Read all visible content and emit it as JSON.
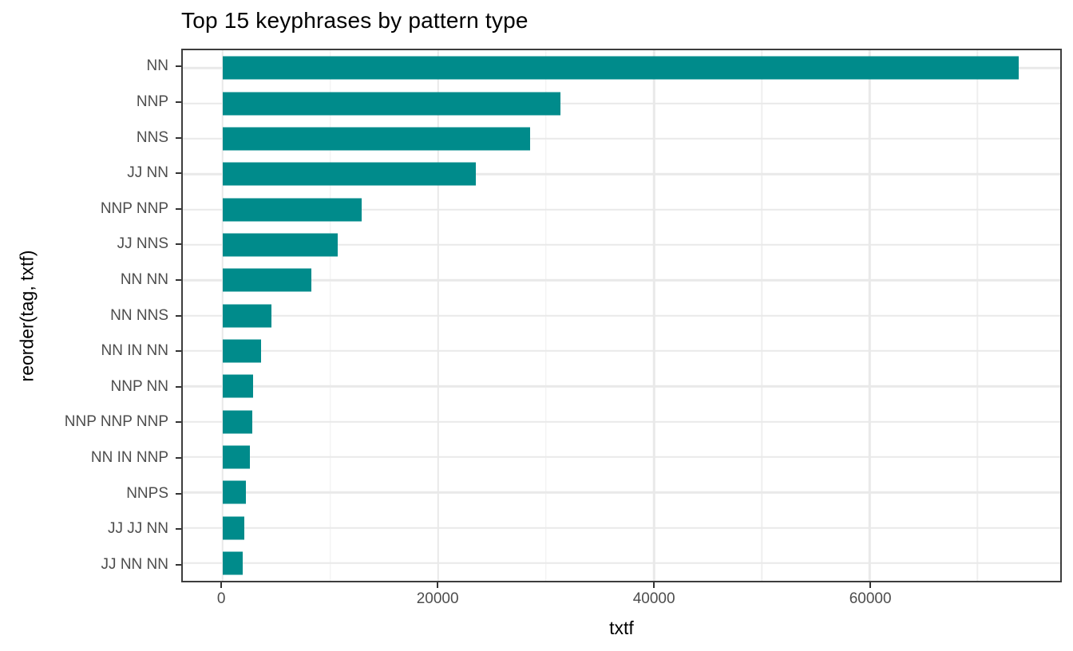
{
  "chart_data": {
    "type": "bar",
    "orientation": "horizontal",
    "title": "Top 15 keyphrases by pattern type",
    "xlabel": "txtf",
    "ylabel": "reorder(tag, txtf)",
    "categories": [
      "NN",
      "NNP",
      "NNS",
      "JJ NN",
      "NNP NNP",
      "JJ NNS",
      "NN NN",
      "NN NNS",
      "NN IN NN",
      "NNP NN",
      "NNP NNP NNP",
      "NN IN NNP",
      "NNPS",
      "JJ JJ NN",
      "JJ NN NN"
    ],
    "values": [
      73850,
      31350,
      28500,
      23500,
      12900,
      10650,
      8200,
      4500,
      3530,
      2800,
      2750,
      2500,
      2130,
      2010,
      1880
    ],
    "x_ticks": [
      0,
      20000,
      40000,
      60000
    ],
    "x_tick_labels": [
      "0",
      "20000",
      "40000",
      "60000"
    ],
    "x_minor_ticks": [
      10000,
      30000,
      50000,
      70000
    ],
    "xlim": [
      -3700,
      77700
    ],
    "bar_color": "#008B8B",
    "grid": "on",
    "legend": "none",
    "panel_border_color": "#3d3d3d",
    "gridline_color": "#e9e9e9",
    "tick_label_color": "#4d4d4d"
  }
}
